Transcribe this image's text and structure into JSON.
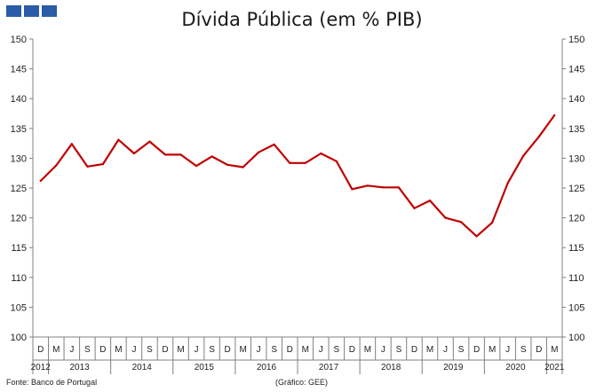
{
  "header": {
    "logo_icon": "institution-logo-blocks",
    "logo_color": "#2a5ca8"
  },
  "chart_data": {
    "type": "line",
    "title": "Dívida Pública (em % PIB)",
    "xlabel": "",
    "ylabel": "",
    "ylim": [
      100,
      150
    ],
    "yticks": [
      100,
      105,
      110,
      115,
      120,
      125,
      130,
      135,
      140,
      145,
      150
    ],
    "y_axis_sides": "both",
    "grid": false,
    "line_color": "#c00000",
    "x": [
      "D 2012",
      "M 2013",
      "J 2013",
      "S 2013",
      "D 2013",
      "M 2014",
      "J 2014",
      "S 2014",
      "D 2014",
      "M 2015",
      "J 2015",
      "S 2015",
      "D 2015",
      "M 2016",
      "J 2016",
      "S 2016",
      "D 2016",
      "M 2017",
      "J 2017",
      "S 2017",
      "D 2017",
      "M 2018",
      "J 2018",
      "S 2018",
      "D 2018",
      "M 2019",
      "J 2019",
      "S 2019",
      "D 2019",
      "M 2020",
      "J 2020",
      "S 2020",
      "D 2020",
      "M 2021"
    ],
    "month_labels": [
      "D",
      "M",
      "J",
      "S",
      "D",
      "M",
      "J",
      "S",
      "D",
      "M",
      "J",
      "S",
      "D",
      "M",
      "J",
      "S",
      "D",
      "M",
      "J",
      "S",
      "D",
      "M",
      "J",
      "S",
      "D",
      "M",
      "J",
      "S",
      "D",
      "M",
      "J",
      "S",
      "D",
      "M"
    ],
    "year_labels": [
      {
        "label": "2012",
        "start": 0,
        "end": 0
      },
      {
        "label": "2013",
        "start": 1,
        "end": 4
      },
      {
        "label": "2014",
        "start": 5,
        "end": 8
      },
      {
        "label": "2015",
        "start": 9,
        "end": 12
      },
      {
        "label": "2016",
        "start": 13,
        "end": 16
      },
      {
        "label": "2017",
        "start": 17,
        "end": 20
      },
      {
        "label": "2018",
        "start": 21,
        "end": 24
      },
      {
        "label": "2019",
        "start": 25,
        "end": 28
      },
      {
        "label": "2020",
        "start": 29,
        "end": 32
      },
      {
        "label": "2021",
        "start": 33,
        "end": 33
      }
    ],
    "series": [
      {
        "values": [
          126.2,
          128.8,
          132.4,
          128.6,
          129.0,
          133.1,
          130.8,
          132.8,
          130.6,
          130.6,
          128.7,
          130.3,
          128.9,
          128.5,
          131.0,
          132.3,
          129.2,
          129.2,
          130.8,
          129.5,
          124.8,
          125.4,
          125.1,
          125.1,
          121.6,
          122.9,
          120.0,
          119.3,
          116.9,
          119.2,
          125.8,
          130.4,
          133.6,
          137.2
        ]
      }
    ]
  },
  "footer": {
    "source": "Fonte: Banco de Portugal",
    "credit": "(Gráfico: GEE)"
  }
}
